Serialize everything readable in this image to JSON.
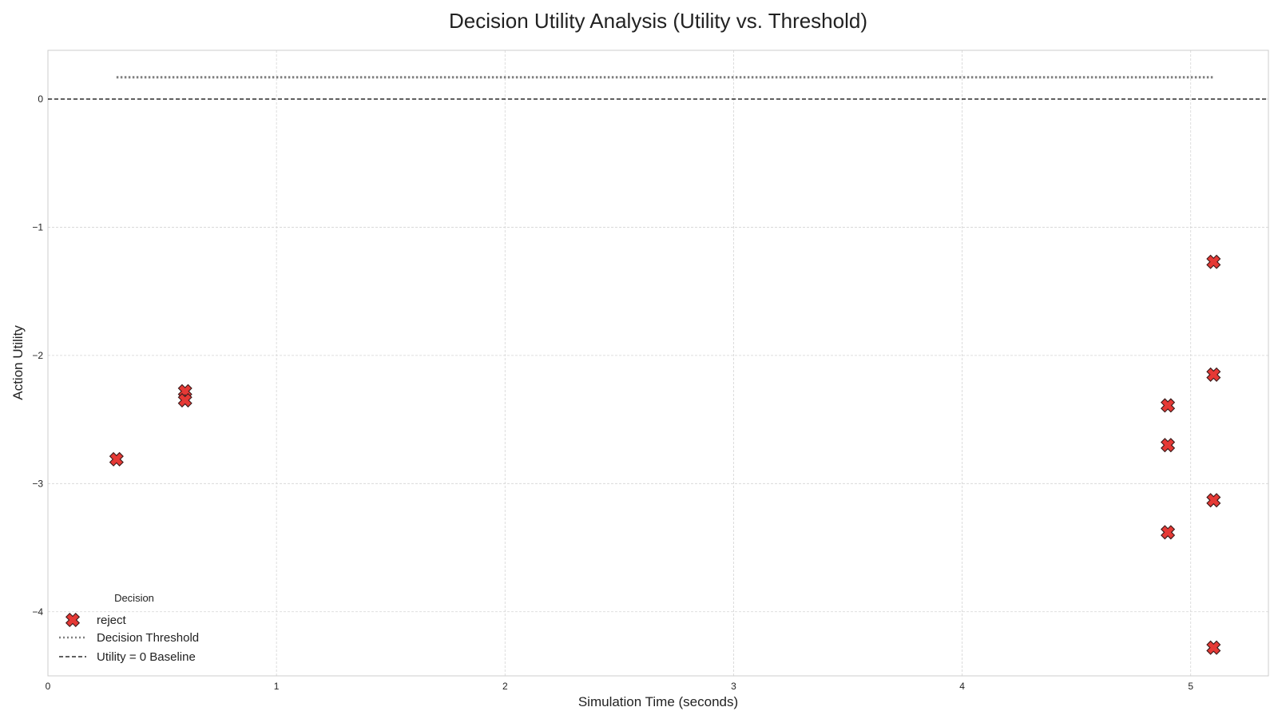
{
  "chart_data": {
    "type": "scatter",
    "title": "Decision Utility Analysis (Utility vs. Threshold)",
    "xlabel": "Simulation Time (seconds)",
    "ylabel": "Action Utility",
    "xlim": [
      0,
      5.34
    ],
    "ylim": [
      -4.5,
      0.38
    ],
    "x_ticks": [
      0,
      1,
      2,
      3,
      4,
      5
    ],
    "y_ticks": [
      0,
      -1,
      -2,
      -3,
      -4
    ],
    "x_tick_labels": [
      "0",
      "1",
      "2",
      "3",
      "4",
      "5"
    ],
    "y_tick_labels": [
      "0",
      "−1",
      "−2",
      "−3",
      "−4"
    ],
    "grid": true,
    "series": [
      {
        "name": "reject",
        "marker": "X",
        "color": "#e53935",
        "points": [
          {
            "x": 0.3,
            "y": -2.81
          },
          {
            "x": 0.6,
            "y": -2.28
          },
          {
            "x": 0.6,
            "y": -2.35
          },
          {
            "x": 4.9,
            "y": -2.39
          },
          {
            "x": 4.9,
            "y": -2.7
          },
          {
            "x": 4.9,
            "y": -3.38
          },
          {
            "x": 5.1,
            "y": -1.27
          },
          {
            "x": 5.1,
            "y": -2.15
          },
          {
            "x": 5.1,
            "y": -3.13
          },
          {
            "x": 5.1,
            "y": -4.28
          }
        ]
      }
    ],
    "threshold_line": {
      "name": "Decision Threshold",
      "y": 0.17,
      "x_start": 0.3,
      "x_end": 5.1,
      "style": "dotted",
      "color": "#808080"
    },
    "baseline_line": {
      "name": "Utility = 0 Baseline",
      "y": 0,
      "style": "dashed",
      "color": "#000000"
    },
    "legend": {
      "title": "Decision",
      "placement": "lower-left",
      "entries": [
        "reject",
        "Decision Threshold",
        "Utility = 0 Baseline"
      ]
    }
  }
}
